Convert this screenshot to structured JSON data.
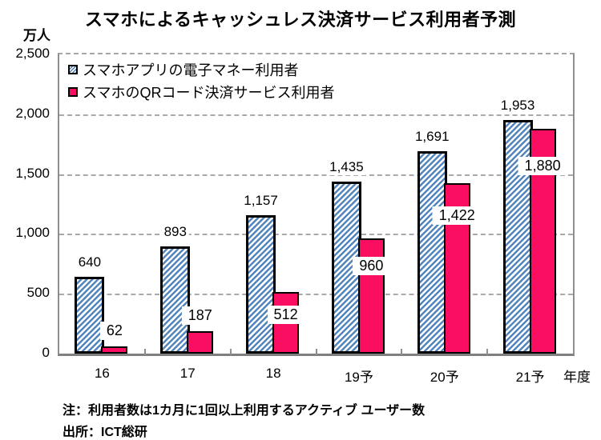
{
  "title": "スマホによるキャッシュレス決済サービス利用者予測",
  "notes": [
    "注：利用者数は1カ月に1回以上利用するアクティブ ユーザー数",
    "出所：ICT総研"
  ],
  "colors": {
    "series1_hatch_blue": "#4f81bd",
    "series2_pink": "#fa0e62",
    "bar_border": "#000000",
    "axis_gray": "#7f7f7f",
    "grid_gray": "#a9a9a9"
  },
  "chart_data": {
    "type": "bar",
    "title": "スマホによるキャッシュレス決済サービス利用者予測",
    "categories": [
      "16",
      "17",
      "18",
      "19予",
      "20予",
      "21予"
    ],
    "series": [
      {
        "name": "スマホアプリの電子マネー利用者",
        "style": "hatched-blue",
        "values": [
          640,
          893,
          1157,
          1435,
          1691,
          1953
        ],
        "labels": [
          "640",
          "893",
          "1,157",
          "1,435",
          "1,691",
          "1,953"
        ]
      },
      {
        "name": "スマホのQRコード決済サービス利用者",
        "style": "solid-pink",
        "values": [
          62,
          187,
          512,
          960,
          1422,
          1880
        ],
        "labels": [
          "62",
          "187",
          "512",
          "960",
          "1,422",
          "1,880"
        ]
      }
    ],
    "ylim": [
      0,
      2500
    ],
    "ytick_step": 500,
    "yticks": [
      "0",
      "500",
      "1,000",
      "1,500",
      "2,000",
      "2,500"
    ],
    "ylabel": "万人",
    "xlabel": "年度",
    "grid": "horizontal-dashed",
    "legend_position": "top-left-inside"
  }
}
